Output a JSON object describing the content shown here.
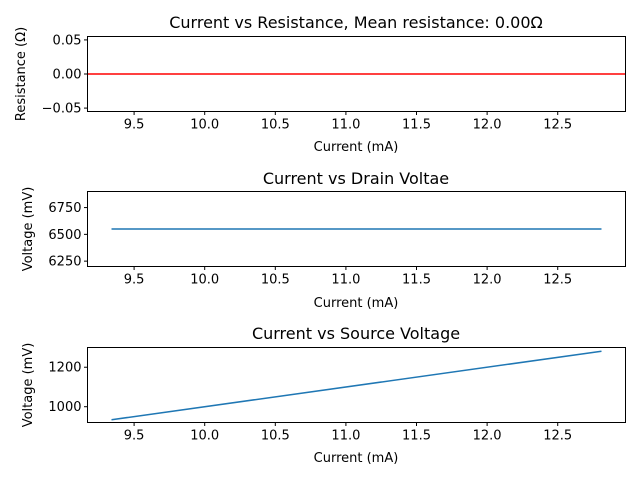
{
  "chart_data": [
    {
      "type": "line",
      "title": "Current vs Resistance, Mean resistance: 0.00Ω",
      "xlabel": "Current (mA)",
      "ylabel": "Resistance (Ω)",
      "xlim": [
        9.17,
        12.98
      ],
      "ylim": [
        -0.055,
        0.055
      ],
      "x_ticks": [
        9.5,
        10.0,
        10.5,
        11.0,
        11.5,
        12.0,
        12.5
      ],
      "x_tick_labels": [
        "9.5",
        "10.0",
        "10.5",
        "11.0",
        "11.5",
        "12.0",
        "12.5"
      ],
      "y_ticks": [
        0.05,
        0.0,
        -0.05
      ],
      "y_tick_labels": [
        "0.05",
        "0.00",
        "−0.05"
      ],
      "grid": false,
      "series": [
        {
          "color": "#ff0000",
          "x": [
            9.17,
            12.98
          ],
          "y": [
            0.0,
            0.0
          ]
        }
      ]
    },
    {
      "type": "line",
      "title": "Current vs Drain Voltae",
      "xlabel": "Current (mA)",
      "ylabel": "Voltage (mV)",
      "xlim": [
        9.17,
        12.98
      ],
      "ylim": [
        6200,
        6900
      ],
      "x_ticks": [
        9.5,
        10.0,
        10.5,
        11.0,
        11.5,
        12.0,
        12.5
      ],
      "x_tick_labels": [
        "9.5",
        "10.0",
        "10.5",
        "11.0",
        "11.5",
        "12.0",
        "12.5"
      ],
      "y_ticks": [
        6750,
        6500,
        6250
      ],
      "y_tick_labels": [
        "6750",
        "6500",
        "6250"
      ],
      "grid": false,
      "series": [
        {
          "color": "#1f77b4",
          "x": [
            9.34,
            12.81
          ],
          "y": [
            6550,
            6550
          ]
        }
      ]
    },
    {
      "type": "line",
      "title": "Current vs Source Voltage",
      "xlabel": "Current (mA)",
      "ylabel": "Voltage (mV)",
      "xlim": [
        9.17,
        12.98
      ],
      "ylim": [
        920,
        1300
      ],
      "x_ticks": [
        9.5,
        10.0,
        10.5,
        11.0,
        11.5,
        12.0,
        12.5
      ],
      "x_tick_labels": [
        "9.5",
        "10.0",
        "10.5",
        "11.0",
        "11.5",
        "12.0",
        "12.5"
      ],
      "y_ticks": [
        1200,
        1000
      ],
      "y_tick_labels": [
        "1200",
        "1000"
      ],
      "grid": false,
      "series": [
        {
          "color": "#1f77b4",
          "x": [
            9.34,
            12.81
          ],
          "y": [
            934,
            1281
          ]
        }
      ]
    }
  ]
}
